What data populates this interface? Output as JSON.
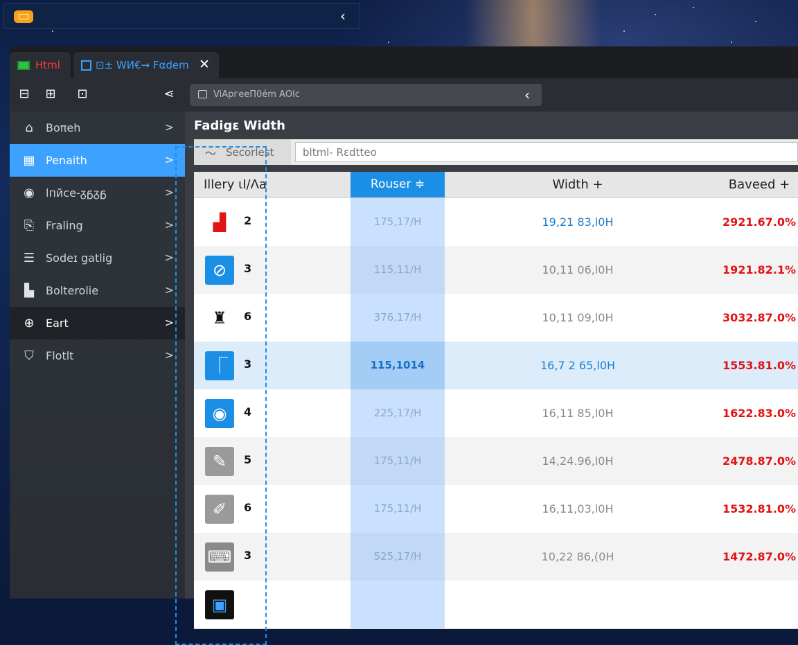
{
  "colors": {
    "accent": "#3da1ff",
    "column_header": "#1b8fe6",
    "tab_html": "#ff3b30",
    "tab_active": "#3aa2ff",
    "value_red": "#e01414",
    "value_blue": "#1a7fd1",
    "mini_app": "#f7a21a"
  },
  "mini_bar": {
    "app_icon": "app-window-icon",
    "collapse_label": "‹"
  },
  "tabs": [
    {
      "label": "Html",
      "icon": "grid-icon"
    },
    {
      "label": "⊡± WИ€⇝ Fαdem",
      "icon": "window-icon"
    }
  ],
  "tab_close": "✕",
  "toolbar": {
    "icons": [
      "monitor-icon",
      "columns-icon",
      "chat-icon"
    ],
    "share_icon": "share-icon",
    "address_text": "ViΑpгeeΠ0ém ΑΟlc",
    "back_label": "‹"
  },
  "sidebar": {
    "items": [
      {
        "label": "Boπeh",
        "icon": "home-icon",
        "glyph": "⌂",
        "chevron": ">"
      },
      {
        "label": "Penaith",
        "icon": "panel-icon",
        "glyph": "▦",
        "chevron": ">"
      },
      {
        "label": "lпйcе-ᵹᵷᵹᵷ",
        "icon": "search-icon",
        "glyph": "◉",
        "chevron": ">"
      },
      {
        "label": "Fraling",
        "icon": "clipboard-icon",
        "glyph": "⎘",
        "chevron": ">"
      },
      {
        "label": "Sodeɪ gatlig",
        "icon": "layers-icon",
        "glyph": "☰",
        "chevron": ">"
      },
      {
        "label": "Bolterolie",
        "icon": "blocks-icon",
        "glyph": "▙",
        "chevron": ">"
      },
      {
        "label": "Eart",
        "icon": "crosshair-icon",
        "glyph": "⊕",
        "chevron": ">"
      },
      {
        "label": "Flotlt",
        "icon": "bookmark-icon",
        "glyph": "⛉",
        "chevron": ">"
      }
    ]
  },
  "content": {
    "title": "Fadigɛ Width",
    "filter_chip_label": "Secorlest",
    "filter_chip_icon": "chevron-up-icon",
    "filter_input_value": "bltml- Rɛdtteo",
    "columns": {
      "name": "Ιllery ιΙ/Λa",
      "router": "Rouser ≑",
      "width": "Width +",
      "based": "Baveed +"
    },
    "rows": [
      {
        "icon": "red-block-icon",
        "icon_bg": "#ffffff",
        "icon_fg": "#e01414",
        "glyph": "▟",
        "id": "2",
        "router": "175,17/H",
        "width": "19,21 83,l0H",
        "width_blue": true,
        "based": "2921.67.0%"
      },
      {
        "icon": "compass-icon",
        "icon_bg": "#1b8fe6",
        "icon_fg": "#ffffff",
        "glyph": "⊘",
        "id": "3",
        "router": "115,11/H",
        "width": "10,11 06,l0H",
        "width_blue": false,
        "based": "1921.82.1%"
      },
      {
        "icon": "bin-icon",
        "icon_bg": "#ffffff",
        "icon_fg": "#111111",
        "glyph": "♜",
        "id": "6",
        "router": "376,17/H",
        "width": "10,11 09,l0H",
        "width_blue": false,
        "based": "3032.87.0%"
      },
      {
        "icon": "flag-icon",
        "icon_bg": "#1b8fe6",
        "icon_fg": "#ffffff",
        "glyph": "⎾",
        "id": "3",
        "router": "115,1014",
        "width": "16,7 2 65,l0H",
        "width_blue": true,
        "based": "1553.81.0%"
      },
      {
        "icon": "target-icon",
        "icon_bg": "#1b8fe6",
        "icon_fg": "#ffffff",
        "glyph": "◉",
        "id": "4",
        "router": "225,17/H",
        "width": "16,11 85,l0H",
        "width_blue": false,
        "based": "1622.83.0%"
      },
      {
        "icon": "pen-icon",
        "icon_bg": "#9a9a9a",
        "icon_fg": "#ffffff",
        "glyph": "✎",
        "id": "5",
        "router": "175,11/H",
        "width": "14,24.96,l0H",
        "width_blue": false,
        "based": "2478.87.0%"
      },
      {
        "icon": "pencil-icon",
        "icon_bg": "#9a9a9a",
        "icon_fg": "#ffffff",
        "glyph": "✐",
        "id": "6",
        "router": "175,11/H",
        "width": "16,11,03,l0H",
        "width_blue": false,
        "based": "1532.81.0%"
      },
      {
        "icon": "device-icon",
        "icon_bg": "#8a8a8a",
        "icon_fg": "#ffffff",
        "glyph": "⌨",
        "id": "3",
        "router": "525,17/H",
        "width": "10,22 86,(0H",
        "width_blue": false,
        "based": "1472.87.0%"
      },
      {
        "icon": "app-icon",
        "icon_bg": "#111111",
        "icon_fg": "#3da1ff",
        "glyph": "▣",
        "id": "",
        "router": "",
        "width": "",
        "width_blue": false,
        "based": ""
      }
    ],
    "selected_row": 3
  }
}
